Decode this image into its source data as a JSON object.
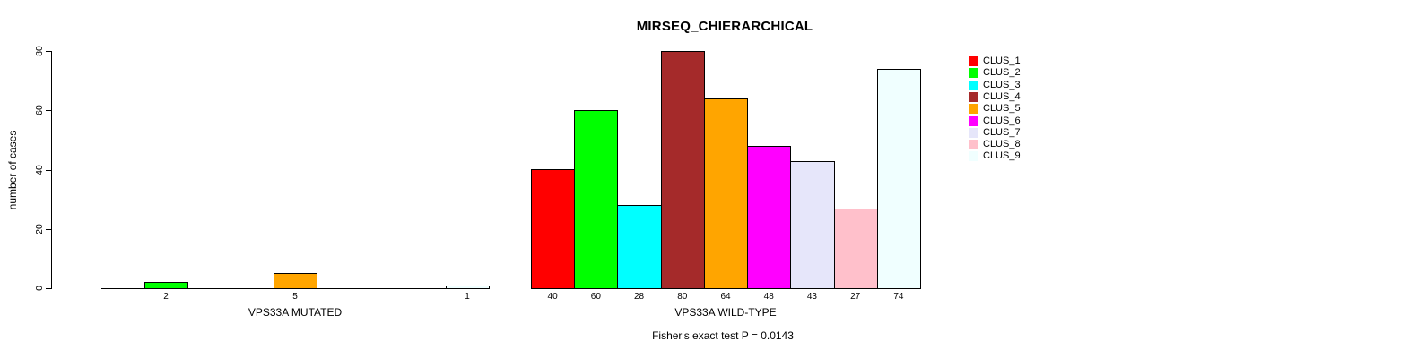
{
  "chart_data": {
    "type": "bar",
    "title": "MIRSEQ_CHIERARCHICAL",
    "ylabel": "number of cases",
    "footnote": "Fisher's exact test P = 0.0143",
    "ylim": [
      0,
      80
    ],
    "yticks": [
      0,
      20,
      40,
      60,
      80
    ],
    "grid": false,
    "legend_position": "top-right",
    "clusters": [
      {
        "name": "CLUS_1",
        "color": "#FF0000"
      },
      {
        "name": "CLUS_2",
        "color": "#00FF00"
      },
      {
        "name": "CLUS_3",
        "color": "#00FFFF"
      },
      {
        "name": "CLUS_4",
        "color": "#A52A2A"
      },
      {
        "name": "CLUS_5",
        "color": "#FFA500"
      },
      {
        "name": "CLUS_6",
        "color": "#FF00FF"
      },
      {
        "name": "CLUS_7",
        "color": "#E6E6FA"
      },
      {
        "name": "CLUS_8",
        "color": "#FFC0CB"
      },
      {
        "name": "CLUS_9",
        "color": "#F0FFFF"
      }
    ],
    "groups": [
      {
        "label": "VPS33A MUTATED",
        "values": [
          0,
          2,
          0,
          0,
          5,
          0,
          0,
          0,
          1
        ],
        "baseline_axis": true
      },
      {
        "label": "VPS33A WILD-TYPE",
        "values": [
          40,
          60,
          28,
          80,
          64,
          48,
          43,
          27,
          74
        ],
        "baseline_axis": false
      }
    ]
  }
}
